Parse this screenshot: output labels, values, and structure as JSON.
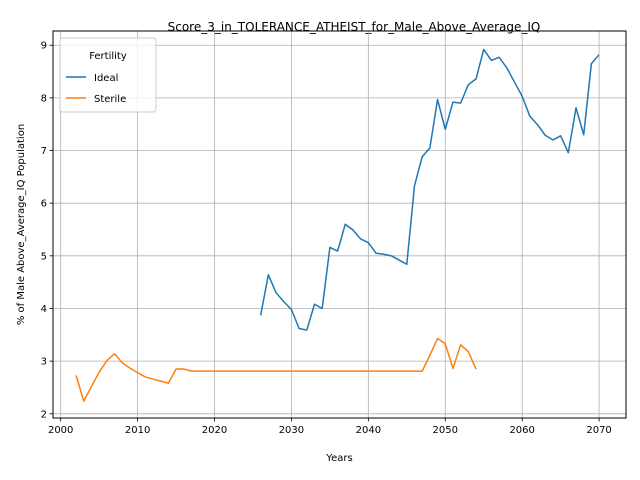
{
  "chart_data": {
    "type": "line",
    "title": "Score_3_in_TOLERANCE_ATHEIST_for_Male_Above_Average_IQ",
    "xlabel": "Years",
    "ylabel": "% of Male Above_Average_IQ Population",
    "xlim": [
      1999,
      2073.5
    ],
    "ylim": [
      1.92,
      9.27
    ],
    "xticks": [
      2000,
      2010,
      2020,
      2030,
      2040,
      2050,
      2060,
      2070
    ],
    "yticks": [
      2,
      3,
      4,
      5,
      6,
      7,
      8,
      9
    ],
    "grid": true,
    "legend": {
      "title": "Fertility",
      "placement": "upper-left"
    },
    "series": [
      {
        "name": "Ideal",
        "color": "#1f77b4",
        "x": [
          2026,
          2027,
          2028,
          2029,
          2030,
          2031,
          2032,
          2033,
          2034,
          2035,
          2036,
          2037,
          2038,
          2039,
          2040,
          2041,
          2042,
          2043,
          2044,
          2045,
          2046,
          2047,
          2048,
          2049,
          2050,
          2051,
          2052,
          2053,
          2054,
          2055,
          2056,
          2057,
          2058,
          2059,
          2060,
          2061,
          2062,
          2063,
          2064,
          2065,
          2066,
          2067,
          2068,
          2069,
          2070
        ],
        "y": [
          3.87,
          4.64,
          4.3,
          4.13,
          3.98,
          3.62,
          3.59,
          4.08,
          4.0,
          5.16,
          5.09,
          5.6,
          5.49,
          5.32,
          5.25,
          5.05,
          5.03,
          5.0,
          4.92,
          4.84,
          6.33,
          6.88,
          7.05,
          7.97,
          7.4,
          7.92,
          7.9,
          8.25,
          8.36,
          8.92,
          8.71,
          8.77,
          8.57,
          8.3,
          8.03,
          7.65,
          7.49,
          7.29,
          7.2,
          7.28,
          6.96,
          7.81,
          7.3,
          8.65,
          8.82
        ]
      },
      {
        "name": "Sterile",
        "color": "#ff7f0e",
        "x": [
          2002,
          2003,
          2004,
          2005,
          2006,
          2007,
          2008,
          2009,
          2010,
          2011,
          2012,
          2013,
          2014,
          2015,
          2016,
          2017,
          2018,
          2019,
          2020,
          2021,
          2022,
          2023,
          2024,
          2025,
          2026,
          2027,
          2028,
          2029,
          2030,
          2031,
          2032,
          2033,
          2034,
          2035,
          2036,
          2037,
          2038,
          2039,
          2040,
          2041,
          2042,
          2043,
          2044,
          2045,
          2046,
          2047,
          2048,
          2049,
          2050,
          2051,
          2052,
          2053,
          2054
        ],
        "y": [
          2.73,
          2.24,
          2.52,
          2.79,
          3.01,
          3.14,
          2.97,
          2.87,
          2.78,
          2.7,
          2.66,
          2.62,
          2.58,
          2.85,
          2.85,
          2.81,
          2.81,
          2.81,
          2.81,
          2.81,
          2.81,
          2.81,
          2.81,
          2.81,
          2.81,
          2.81,
          2.81,
          2.81,
          2.81,
          2.81,
          2.81,
          2.81,
          2.81,
          2.81,
          2.81,
          2.81,
          2.81,
          2.81,
          2.81,
          2.81,
          2.81,
          2.81,
          2.81,
          2.81,
          2.81,
          2.81,
          3.11,
          3.43,
          3.33,
          2.86,
          3.31,
          3.18,
          2.85
        ]
      }
    ]
  }
}
